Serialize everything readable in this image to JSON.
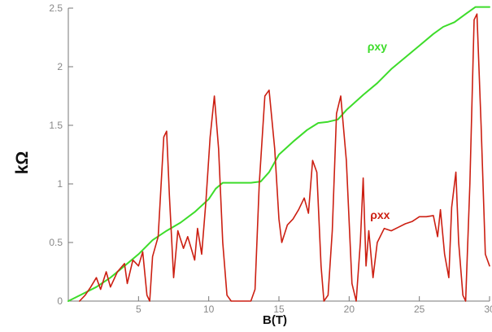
{
  "chart_data": {
    "type": "line",
    "xlabel": "B(T)",
    "ylabel": "kΩ",
    "xlim": [
      0,
      30
    ],
    "ylim": [
      0,
      2.5
    ],
    "x_ticks": [
      5,
      10,
      15,
      20,
      25,
      30
    ],
    "y_ticks": [
      0,
      0.5,
      1,
      1.5,
      2,
      2.5
    ],
    "x_tick_labels": [
      "5",
      "10",
      "15",
      "20",
      "25",
      "30"
    ],
    "y_tick_labels": [
      "0",
      "0.5",
      "1",
      "1.5",
      "2",
      "2.5"
    ],
    "grid": false,
    "legend": "inline labels",
    "series": [
      {
        "name": "ρxy",
        "color": "#3ddc2a",
        "label_at": [
          21.3,
          2.14
        ],
        "points": [
          [
            0,
            0
          ],
          [
            1,
            0.06
          ],
          [
            2,
            0.12
          ],
          [
            3,
            0.2
          ],
          [
            4,
            0.3
          ],
          [
            5,
            0.4
          ],
          [
            6,
            0.52
          ],
          [
            7,
            0.6
          ],
          [
            8,
            0.67
          ],
          [
            9,
            0.76
          ],
          [
            10,
            0.87
          ],
          [
            10.5,
            0.96
          ],
          [
            11,
            1.01
          ],
          [
            12,
            1.01
          ],
          [
            13,
            1.01
          ],
          [
            13.7,
            1.02
          ],
          [
            14.3,
            1.1
          ],
          [
            15,
            1.25
          ],
          [
            16,
            1.36
          ],
          [
            17,
            1.46
          ],
          [
            17.8,
            1.52
          ],
          [
            18.5,
            1.53
          ],
          [
            19.2,
            1.55
          ],
          [
            19.8,
            1.63
          ],
          [
            21,
            1.76
          ],
          [
            22,
            1.86
          ],
          [
            23,
            1.98
          ],
          [
            24,
            2.08
          ],
          [
            25,
            2.18
          ],
          [
            26,
            2.28
          ],
          [
            26.7,
            2.34
          ],
          [
            27.5,
            2.38
          ],
          [
            28.3,
            2.45
          ],
          [
            29,
            2.51
          ],
          [
            30,
            2.51
          ]
        ]
      },
      {
        "name": "ρxx",
        "color": "#cc1f12",
        "label_at": [
          21.5,
          0.7
        ],
        "points": [
          [
            0.8,
            0
          ],
          [
            1.2,
            0.05
          ],
          [
            1.6,
            0.12
          ],
          [
            2,
            0.2
          ],
          [
            2.3,
            0.1
          ],
          [
            2.7,
            0.25
          ],
          [
            3,
            0.12
          ],
          [
            3.5,
            0.25
          ],
          [
            4,
            0.32
          ],
          [
            4.2,
            0.15
          ],
          [
            4.6,
            0.35
          ],
          [
            5,
            0.3
          ],
          [
            5.3,
            0.42
          ],
          [
            5.6,
            0.05
          ],
          [
            5.8,
            0
          ],
          [
            6,
            0.38
          ],
          [
            6.4,
            0.55
          ],
          [
            6.8,
            1.4
          ],
          [
            7,
            1.45
          ],
          [
            7.2,
            0.9
          ],
          [
            7.5,
            0.2
          ],
          [
            7.8,
            0.6
          ],
          [
            8.2,
            0.45
          ],
          [
            8.5,
            0.55
          ],
          [
            9,
            0.35
          ],
          [
            9.2,
            0.62
          ],
          [
            9.5,
            0.4
          ],
          [
            9.8,
            0.85
          ],
          [
            10.1,
            1.4
          ],
          [
            10.4,
            1.75
          ],
          [
            10.7,
            1.3
          ],
          [
            11,
            0.5
          ],
          [
            11.3,
            0.05
          ],
          [
            11.6,
            0
          ],
          [
            13,
            0
          ],
          [
            13.3,
            0.1
          ],
          [
            13.6,
            1.0
          ],
          [
            14,
            1.75
          ],
          [
            14.3,
            1.8
          ],
          [
            14.7,
            1.3
          ],
          [
            15,
            0.7
          ],
          [
            15.2,
            0.5
          ],
          [
            15.6,
            0.65
          ],
          [
            16,
            0.7
          ],
          [
            16.4,
            0.78
          ],
          [
            16.8,
            0.88
          ],
          [
            17.1,
            0.75
          ],
          [
            17.4,
            1.2
          ],
          [
            17.7,
            1.1
          ],
          [
            18,
            0.3
          ],
          [
            18.2,
            0
          ],
          [
            18.5,
            0.05
          ],
          [
            18.8,
            0.6
          ],
          [
            19.1,
            1.6
          ],
          [
            19.4,
            1.75
          ],
          [
            19.8,
            1.2
          ],
          [
            20.2,
            0.15
          ],
          [
            20.5,
            0
          ],
          [
            20.8,
            0.5
          ],
          [
            21,
            1.05
          ],
          [
            21.2,
            0.3
          ],
          [
            21.4,
            0.6
          ],
          [
            21.7,
            0.2
          ],
          [
            22,
            0.5
          ],
          [
            22.5,
            0.62
          ],
          [
            23,
            0.6
          ],
          [
            23.5,
            0.63
          ],
          [
            24,
            0.66
          ],
          [
            24.5,
            0.68
          ],
          [
            25,
            0.72
          ],
          [
            25.5,
            0.72
          ],
          [
            26,
            0.73
          ],
          [
            26.3,
            0.55
          ],
          [
            26.5,
            0.78
          ],
          [
            26.8,
            0.4
          ],
          [
            27.1,
            0.2
          ],
          [
            27.3,
            0.8
          ],
          [
            27.6,
            1.1
          ],
          [
            27.8,
            0.5
          ],
          [
            28.1,
            0.05
          ],
          [
            28.3,
            0
          ],
          [
            28.6,
            1.0
          ],
          [
            28.9,
            2.4
          ],
          [
            29.1,
            2.45
          ],
          [
            29.4,
            1.5
          ],
          [
            29.7,
            0.4
          ],
          [
            30,
            0.3
          ]
        ]
      }
    ]
  }
}
